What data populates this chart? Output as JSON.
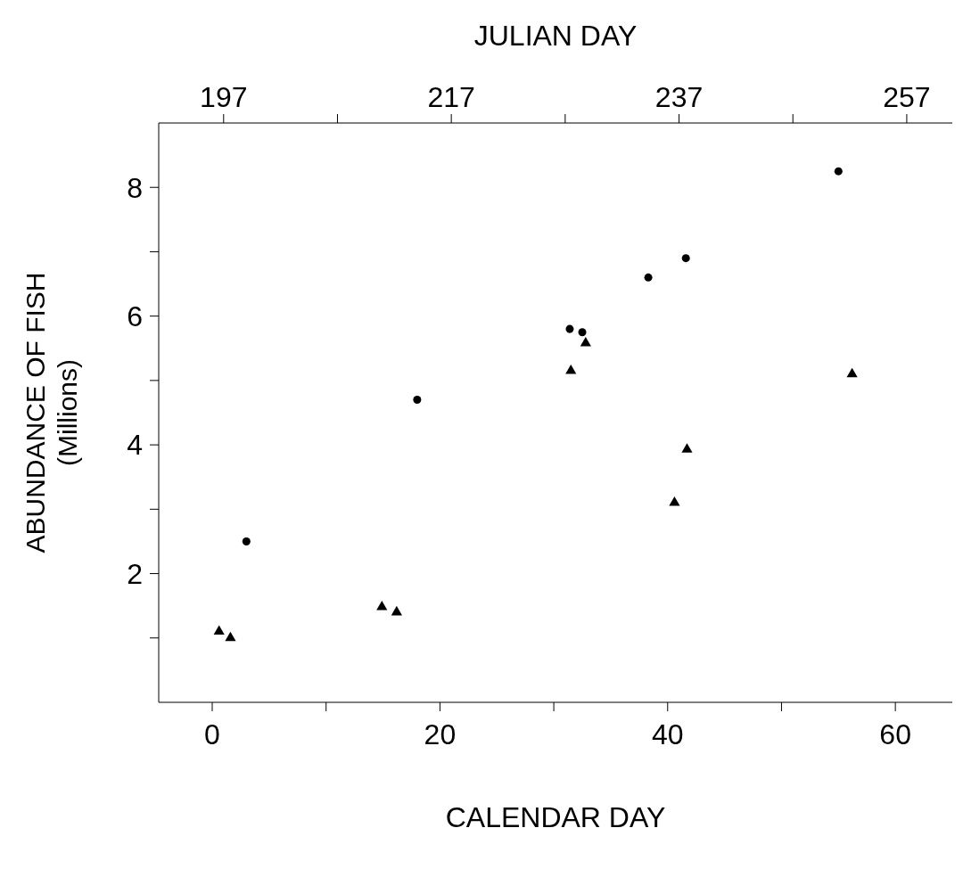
{
  "chart_data": {
    "type": "scatter",
    "xlabel": "CALENDAR DAY",
    "x2label": "JULIAN DAY",
    "ylabel": "ABUNDANCE OF FISH\n(Millions)",
    "xlim": [
      -4.7,
      65
    ],
    "xticks": [
      0,
      {
        "value": 10,
        "label": null
      },
      20,
      {
        "value": 30,
        "label": null
      },
      40,
      {
        "value": 50,
        "label": null
      },
      60
    ],
    "x2lim": [
      191.3,
      261
    ],
    "x2ticks": [
      197,
      {
        "value": 207,
        "label": null
      },
      217,
      {
        "value": 227,
        "label": null
      },
      237,
      {
        "value": 247,
        "label": null
      },
      257
    ],
    "ylim": [
      0,
      9
    ],
    "yticks": [
      {
        "value": 1,
        "label": null
      },
      2,
      {
        "value": 3,
        "label": null
      },
      4,
      {
        "value": 5,
        "label": null
      },
      6,
      {
        "value": 7,
        "label": null
      },
      8
    ],
    "grid": false,
    "legend": false,
    "series": [
      {
        "color": "#000000",
        "marker": "circle",
        "x": [
          3,
          18,
          31.4,
          32.5,
          38.3,
          41.6,
          55
        ],
        "values": [
          2.5,
          4.7,
          5.8,
          5.75,
          6.6,
          6.9,
          8.25
        ]
      },
      {
        "color": "#000000",
        "marker": "triangle",
        "x": [
          0.6,
          1.6,
          14.9,
          16.2,
          31.5,
          32.8,
          40.6,
          41.7,
          56.2
        ],
        "values": [
          1.1,
          1.0,
          1.48,
          1.4,
          5.15,
          5.58,
          3.1,
          3.93,
          5.1
        ]
      }
    ]
  }
}
